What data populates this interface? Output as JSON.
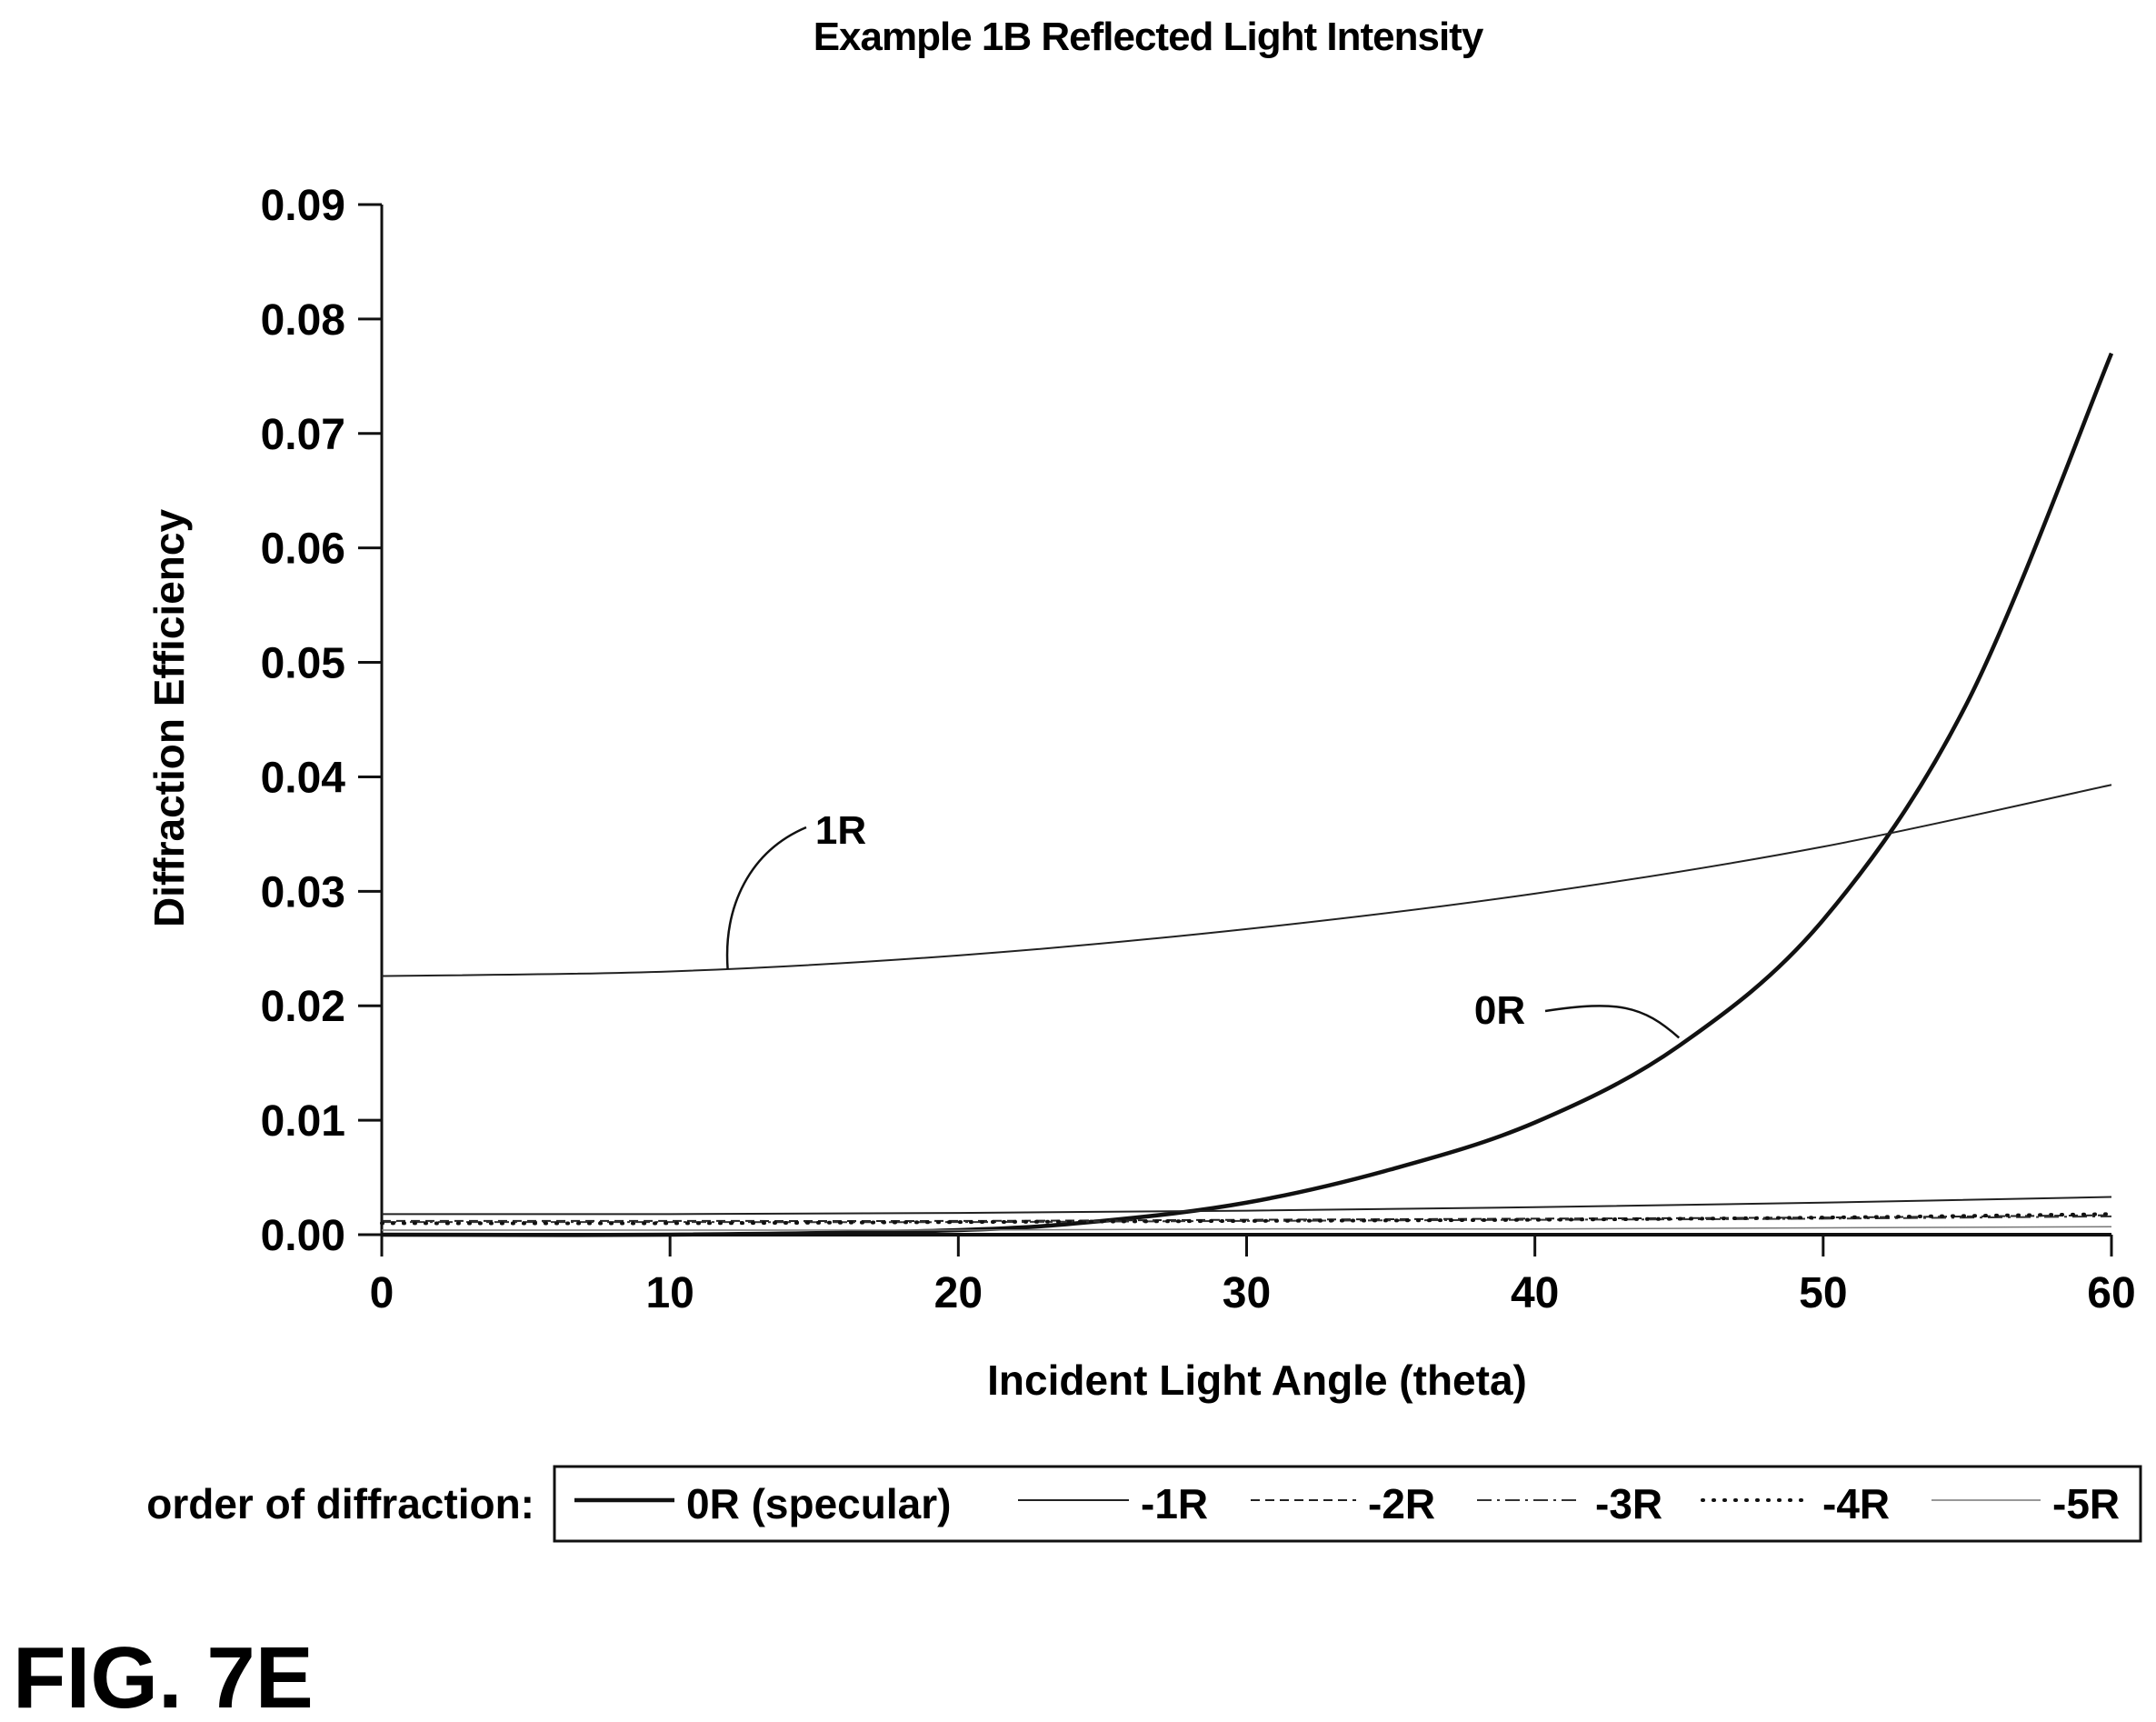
{
  "chart_data": {
    "type": "line",
    "title": "Example 1B Reflected Light Intensity",
    "xlabel": "Incident Light Angle (theta)",
    "ylabel": "Diffraction Efficiency",
    "xlim": [
      0,
      60
    ],
    "ylim": [
      0,
      0.09
    ],
    "xticks": [
      "0",
      "10",
      "20",
      "30",
      "40",
      "50",
      "60"
    ],
    "yticks": [
      "0.00",
      "0.01",
      "0.02",
      "0.03",
      "0.04",
      "0.05",
      "0.06",
      "0.07",
      "0.08",
      "0.09"
    ],
    "grid": false,
    "legend": {
      "title": "order of diffraction:",
      "position": "bottom",
      "entries": [
        "0R (specular)",
        "-1R",
        "-2R",
        "-3R",
        "-4R",
        "-5R"
      ]
    },
    "series": [
      {
        "name": "0R (specular)",
        "style": "solid-bold",
        "x": [
          0,
          10,
          20,
          25,
          30,
          35,
          40,
          45,
          50,
          55,
          60
        ],
        "y": [
          0.0,
          0.0,
          0.0004,
          0.0012,
          0.0028,
          0.0057,
          0.0098,
          0.0165,
          0.0275,
          0.0465,
          0.077
        ]
      },
      {
        "name": "-1R",
        "style": "solid-thin",
        "x": [
          0,
          10,
          20,
          30,
          40,
          50,
          60
        ],
        "y": [
          0.0018,
          0.0018,
          0.0019,
          0.0021,
          0.0024,
          0.0028,
          0.0033
        ]
      },
      {
        "name": "-2R",
        "style": "dashed",
        "x": [
          0,
          10,
          20,
          30,
          40,
          50,
          60
        ],
        "y": [
          0.0012,
          0.0012,
          0.0012,
          0.0013,
          0.0014,
          0.0015,
          0.0017
        ]
      },
      {
        "name": "-3R",
        "style": "dashdot",
        "x": [
          0,
          10,
          20,
          30,
          40,
          50,
          60
        ],
        "y": [
          0.0011,
          0.0011,
          0.0011,
          0.0012,
          0.0013,
          0.0014,
          0.0016
        ]
      },
      {
        "name": "-4R",
        "style": "dotted",
        "x": [
          0,
          10,
          20,
          30,
          40,
          50,
          60
        ],
        "y": [
          0.001,
          0.001,
          0.0011,
          0.0012,
          0.0013,
          0.0015,
          0.0018
        ]
      },
      {
        "name": "-5R",
        "style": "solid-thin-gray",
        "x": [
          0,
          10,
          20,
          30,
          40,
          50,
          60
        ],
        "y": [
          0.0004,
          0.0004,
          0.0004,
          0.0005,
          0.0005,
          0.0006,
          0.0007
        ]
      },
      {
        "name": "1R",
        "style": "solid-thin",
        "x": [
          0,
          10,
          20,
          30,
          40,
          50,
          60
        ],
        "y": [
          0.0226,
          0.023,
          0.0244,
          0.0267,
          0.0298,
          0.0339,
          0.0393
        ]
      }
    ],
    "annotations": [
      {
        "text": "1R",
        "x": 12,
        "y": 0.0232
      },
      {
        "text": "0R",
        "x": 45,
        "y": 0.0172
      }
    ]
  },
  "figure_label": "FIG. 7E"
}
